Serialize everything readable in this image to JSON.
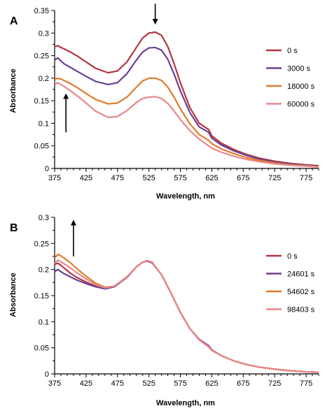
{
  "chart_data": [
    {
      "panel_label": "A",
      "type": "line",
      "xlabel": "Wavelength, nm",
      "ylabel": "Absorbance",
      "xlim": [
        375,
        795
      ],
      "ylim": [
        0,
        0.35
      ],
      "xticks": [
        "375",
        "425",
        "475",
        "525",
        "575",
        "625",
        "675",
        "725",
        "775"
      ],
      "yticks": [
        "0",
        "0.05",
        "0.1",
        "0.15",
        "0.2",
        "0.25",
        "0.3",
        "0.35"
      ],
      "grid": false,
      "legend_position": "right",
      "annotations": [
        {
          "kind": "arrow",
          "direction": "down",
          "x": 535,
          "y_from": 0.365,
          "y_to": 0.325
        },
        {
          "kind": "arrow",
          "direction": "up",
          "x": 393,
          "y_from": 0.08,
          "y_to": 0.16
        }
      ],
      "series": [
        {
          "name": "0 s",
          "color": "#b5343f",
          "x": [
            375,
            380,
            385,
            390,
            400,
            410,
            425,
            440,
            460,
            475,
            490,
            505,
            515,
            525,
            535,
            545,
            555,
            565,
            575,
            590,
            605,
            620,
            625,
            640,
            660,
            680,
            700,
            725,
            750,
            775,
            795
          ],
          "y": [
            0.27,
            0.272,
            0.268,
            0.265,
            0.258,
            0.25,
            0.236,
            0.222,
            0.212,
            0.216,
            0.236,
            0.268,
            0.289,
            0.3,
            0.302,
            0.295,
            0.27,
            0.232,
            0.19,
            0.135,
            0.1,
            0.086,
            0.072,
            0.056,
            0.042,
            0.031,
            0.023,
            0.016,
            0.011,
            0.008,
            0.006
          ]
        },
        {
          "name": "3000 s",
          "color": "#6a3f96",
          "x": [
            375,
            380,
            385,
            390,
            400,
            410,
            425,
            440,
            460,
            475,
            490,
            505,
            515,
            525,
            535,
            545,
            555,
            565,
            575,
            590,
            605,
            620,
            625,
            640,
            660,
            680,
            700,
            725,
            750,
            775,
            795
          ],
          "y": [
            0.24,
            0.245,
            0.238,
            0.232,
            0.224,
            0.216,
            0.204,
            0.193,
            0.186,
            0.19,
            0.21,
            0.24,
            0.258,
            0.267,
            0.268,
            0.262,
            0.242,
            0.209,
            0.172,
            0.124,
            0.092,
            0.08,
            0.067,
            0.052,
            0.039,
            0.029,
            0.021,
            0.014,
            0.01,
            0.007,
            0.005
          ]
        },
        {
          "name": "18000 s",
          "color": "#e07b2a",
          "x": [
            375,
            380,
            385,
            390,
            400,
            410,
            425,
            440,
            460,
            475,
            490,
            505,
            515,
            525,
            535,
            545,
            555,
            565,
            575,
            590,
            605,
            620,
            625,
            640,
            660,
            680,
            700,
            725,
            750,
            775,
            795
          ],
          "y": [
            0.197,
            0.2,
            0.198,
            0.195,
            0.188,
            0.18,
            0.166,
            0.153,
            0.143,
            0.145,
            0.158,
            0.18,
            0.194,
            0.2,
            0.2,
            0.195,
            0.18,
            0.158,
            0.132,
            0.099,
            0.075,
            0.062,
            0.055,
            0.043,
            0.033,
            0.024,
            0.018,
            0.012,
            0.008,
            0.006,
            0.004
          ]
        },
        {
          "name": "60000 s",
          "color": "#e8878a",
          "x": [
            375,
            380,
            385,
            390,
            400,
            410,
            425,
            440,
            460,
            475,
            490,
            505,
            515,
            525,
            535,
            545,
            555,
            565,
            575,
            590,
            605,
            620,
            625,
            640,
            660,
            680,
            700,
            725,
            750,
            775,
            795
          ],
          "y": [
            0.185,
            0.19,
            0.186,
            0.182,
            0.172,
            0.162,
            0.145,
            0.127,
            0.113,
            0.115,
            0.128,
            0.146,
            0.155,
            0.158,
            0.159,
            0.155,
            0.144,
            0.127,
            0.108,
            0.084,
            0.065,
            0.05,
            0.045,
            0.036,
            0.027,
            0.02,
            0.015,
            0.01,
            0.007,
            0.005,
            0.003
          ]
        }
      ]
    },
    {
      "panel_label": "B",
      "type": "line",
      "xlabel": "Wavelength, nm",
      "ylabel": "Absorbance",
      "xlim": [
        375,
        795
      ],
      "ylim": [
        0,
        0.3
      ],
      "xticks": [
        "375",
        "425",
        "475",
        "525",
        "575",
        "625",
        "675",
        "725",
        "775"
      ],
      "yticks": [
        "0",
        "0.05",
        "0.1",
        "0.15",
        "0.2",
        "0.25",
        "0.3"
      ],
      "grid": false,
      "legend_position": "right",
      "annotations": [
        {
          "kind": "arrow",
          "direction": "up",
          "x": 405,
          "y_from": 0.225,
          "y_to": 0.29
        }
      ],
      "series": [
        {
          "name": "0 s",
          "color": "#b5343f",
          "x": [
            375,
            380,
            385,
            390,
            400,
            410,
            425,
            440,
            455,
            470,
            490,
            505,
            515,
            522,
            530,
            545,
            560,
            575,
            590,
            605,
            620,
            625,
            640,
            660,
            680,
            700,
            725,
            750,
            775,
            795
          ],
          "y": [
            0.21,
            0.212,
            0.208,
            0.203,
            0.193,
            0.185,
            0.176,
            0.168,
            0.163,
            0.167,
            0.185,
            0.205,
            0.214,
            0.216,
            0.213,
            0.19,
            0.155,
            0.118,
            0.087,
            0.065,
            0.052,
            0.045,
            0.035,
            0.025,
            0.018,
            0.013,
            0.009,
            0.006,
            0.004,
            0.003
          ]
        },
        {
          "name": "24601 s",
          "color": "#6a3f96",
          "x": [
            375,
            380,
            385,
            390,
            400,
            410,
            425,
            440,
            455,
            470,
            490,
            505,
            515,
            522,
            530,
            545,
            560,
            575,
            590,
            605,
            620,
            625,
            640,
            660,
            680,
            700,
            725,
            750,
            775,
            795
          ],
          "y": [
            0.196,
            0.2,
            0.196,
            0.192,
            0.186,
            0.18,
            0.173,
            0.167,
            0.163,
            0.167,
            0.185,
            0.205,
            0.214,
            0.216,
            0.213,
            0.19,
            0.155,
            0.118,
            0.087,
            0.066,
            0.054,
            0.046,
            0.035,
            0.025,
            0.018,
            0.013,
            0.009,
            0.006,
            0.004,
            0.003
          ]
        },
        {
          "name": "54602 s",
          "color": "#e07b2a",
          "x": [
            375,
            380,
            385,
            390,
            400,
            410,
            425,
            440,
            455,
            470,
            490,
            505,
            515,
            522,
            530,
            545,
            560,
            575,
            590,
            605,
            620,
            625,
            640,
            660,
            680,
            700,
            725,
            750,
            775,
            795
          ],
          "y": [
            0.222,
            0.229,
            0.226,
            0.222,
            0.213,
            0.202,
            0.187,
            0.174,
            0.166,
            0.168,
            0.186,
            0.205,
            0.214,
            0.217,
            0.214,
            0.19,
            0.155,
            0.118,
            0.087,
            0.065,
            0.052,
            0.045,
            0.035,
            0.025,
            0.018,
            0.013,
            0.009,
            0.006,
            0.004,
            0.003
          ]
        },
        {
          "name": "98403 s",
          "color": "#e8878a",
          "x": [
            375,
            380,
            385,
            390,
            400,
            410,
            425,
            440,
            455,
            470,
            490,
            505,
            515,
            522,
            530,
            545,
            560,
            575,
            590,
            605,
            620,
            625,
            640,
            660,
            680,
            700,
            725,
            750,
            775,
            795
          ],
          "y": [
            0.212,
            0.218,
            0.215,
            0.211,
            0.203,
            0.194,
            0.182,
            0.171,
            0.165,
            0.168,
            0.186,
            0.205,
            0.214,
            0.217,
            0.214,
            0.19,
            0.155,
            0.118,
            0.087,
            0.065,
            0.052,
            0.045,
            0.035,
            0.025,
            0.018,
            0.013,
            0.009,
            0.006,
            0.004,
            0.003
          ]
        }
      ]
    }
  ]
}
